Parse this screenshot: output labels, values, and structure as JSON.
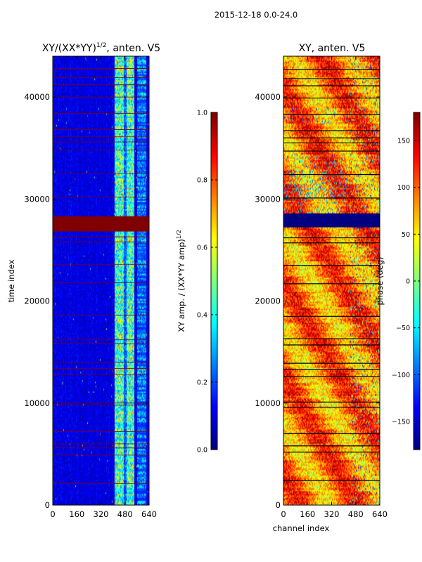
{
  "figure": {
    "suptitle": "2015-12-18 0.0-24.0"
  },
  "colors": {
    "jet_dark_blue": "#00007f",
    "jet_dark_red": "#800000",
    "frame": "#000000"
  },
  "chart_data": [
    {
      "type": "heatmap",
      "title_text": "XY/(XX*YY)",
      "title_exp": "1/2",
      "title_suffix": ", anten. V5",
      "xlabel": "",
      "ylabel": "time index",
      "xlim": [
        0,
        640
      ],
      "ylim": [
        0,
        44000
      ],
      "xticks": [
        0,
        160,
        320,
        480,
        640
      ],
      "yticks": [
        0,
        10000,
        20000,
        30000,
        40000
      ],
      "colorbar": {
        "label_text": "XY amp. / (XX*YY amp)",
        "label_exp": "1/2",
        "range": [
          0.0,
          1.0
        ],
        "ticks": [
          "0.0",
          "0.2",
          "0.4",
          "0.6",
          "0.8",
          "1.0"
        ],
        "tick_values": [
          0.0,
          0.2,
          0.4,
          0.6,
          0.8,
          1.0
        ]
      },
      "flagged_band": [
        26900,
        28400
      ],
      "hline_rows": [
        2100,
        4900,
        5600,
        6000,
        7200,
        9800,
        10000,
        12800,
        13400,
        14000,
        15800,
        16200,
        18600,
        21800,
        23600,
        25800,
        26300,
        30200,
        32500,
        34800,
        35600,
        36100,
        36800,
        38400,
        40000,
        41200,
        41900,
        42800
      ]
    },
    {
      "type": "heatmap",
      "title_text": "XY, anten. V5",
      "xlabel": "channel index",
      "ylabel": "",
      "xlim": [
        0,
        640
      ],
      "ylim": [
        0,
        44000
      ],
      "xticks": [
        0,
        160,
        320,
        480,
        640
      ],
      "yticks": [
        0,
        10000,
        20000,
        30000,
        40000
      ],
      "colorbar": {
        "label_text": "phase (deg)",
        "range": [
          -180,
          180
        ],
        "ticks": [
          "−150",
          "−100",
          "−50",
          "0",
          "50",
          "100",
          "150"
        ],
        "tick_values": [
          -150,
          -100,
          -50,
          0,
          50,
          100,
          150
        ]
      },
      "flagged_band": [
        27300,
        28700
      ],
      "hline_rows": [
        2400,
        5200,
        5800,
        7000,
        9600,
        10100,
        12600,
        13300,
        13900,
        15700,
        16300,
        18500,
        21700,
        23500,
        25700,
        26200,
        30100,
        32400,
        34700,
        35500,
        36000,
        36700,
        38300,
        39900,
        41100,
        41800,
        42700
      ]
    }
  ]
}
